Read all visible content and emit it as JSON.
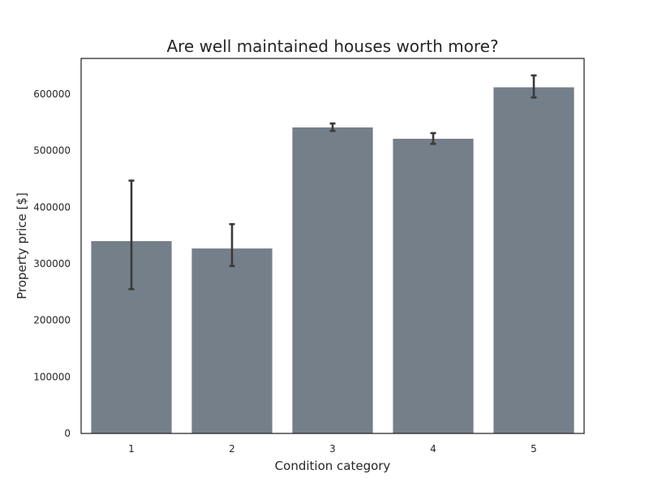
{
  "chart_data": {
    "type": "bar",
    "title": "Are well maintained houses worth more?",
    "xlabel": "Condition category",
    "ylabel": "Property price [$]",
    "categories": [
      "1",
      "2",
      "3",
      "4",
      "5"
    ],
    "values": [
      340000,
      327000,
      541000,
      521000,
      612000
    ],
    "error_low": [
      255000,
      296000,
      535000,
      512000,
      594000
    ],
    "error_high": [
      447000,
      370000,
      548000,
      531000,
      633000
    ],
    "ylim": [
      0,
      663000
    ],
    "yticks": [
      0,
      100000,
      200000,
      300000,
      400000,
      500000,
      600000
    ],
    "grid": false,
    "colors": {
      "bar": "#757f8a",
      "errorbar": "#3a3a3a",
      "axis": "#262626"
    }
  }
}
